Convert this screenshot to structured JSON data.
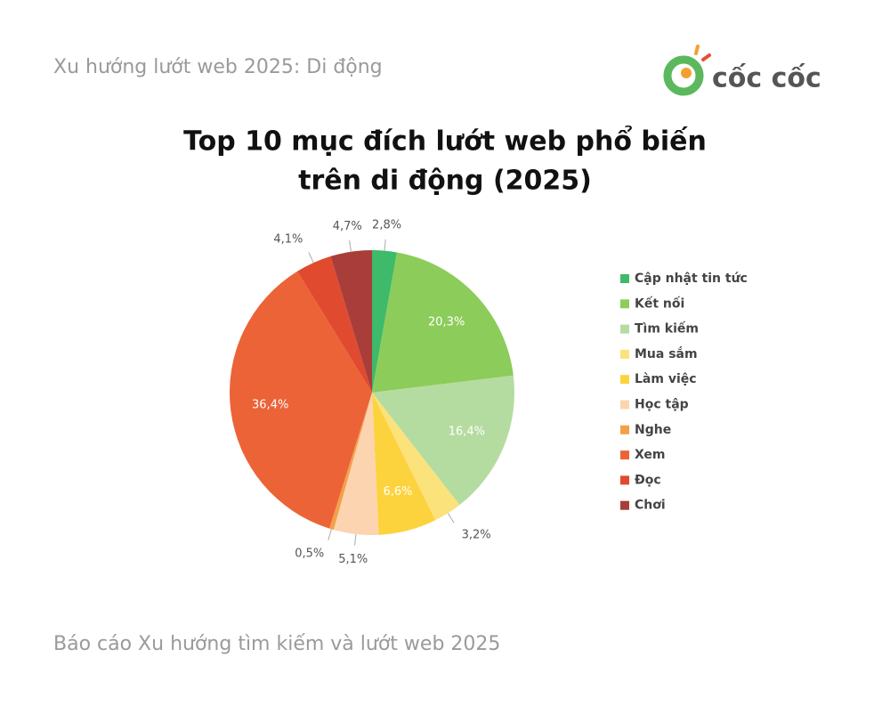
{
  "header": {
    "subtitle": "Xu hướng lướt web 2025: Di động",
    "logo": "cốc cốc"
  },
  "chart_data": {
    "type": "pie",
    "title": [
      "Top 10 mục đích lướt web phổ biến",
      "trên di động (2025)"
    ],
    "categories": [
      "Cập nhật tin tức",
      "Kết nối",
      "Tìm kiếm",
      "Mua sắm",
      "Làm việc",
      "Học tập",
      "Nghe",
      "Xem",
      "Đọc",
      "Chơi"
    ],
    "values": [
      2.8,
      20.3,
      16.4,
      3.2,
      6.6,
      5.1,
      0.5,
      36.4,
      4.1,
      4.7
    ],
    "value_labels": [
      "2,8%",
      "20,3%",
      "16,4%",
      "3,2%",
      "6,6%",
      "5,1%",
      "0,5%",
      "36,4%",
      "4,1%",
      "4,7%"
    ],
    "colors": [
      "#3dba6a",
      "#8ccc5a",
      "#b5dca0",
      "#fbe27a",
      "#fcd33c",
      "#fcd4b0",
      "#f4a04a",
      "#ec6337",
      "#e04a2f",
      "#a83d3a"
    ],
    "legend": "right"
  },
  "footer": "Báo cáo Xu hướng tìm kiếm và lướt web 2025"
}
